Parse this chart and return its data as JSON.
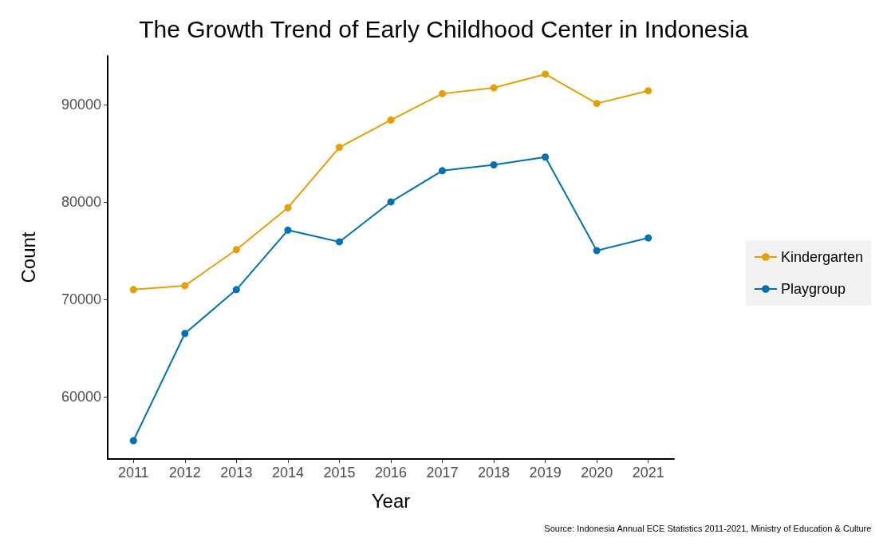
{
  "chart_data": {
    "type": "line",
    "title": "The Growth Trend of Early Childhood Center in Indonesia",
    "xlabel": "Year",
    "ylabel": "Count",
    "categories": [
      "2011",
      "2012",
      "2013",
      "2014",
      "2015",
      "2016",
      "2017",
      "2018",
      "2019",
      "2020",
      "2021"
    ],
    "series": [
      {
        "name": "Kindergarten",
        "color": "#e69f00",
        "values": [
          71000,
          71400,
          75100,
          79400,
          85600,
          88400,
          91100,
          91700,
          93100,
          90100,
          91400
        ]
      },
      {
        "name": "Playgroup",
        "color": "#0072b2",
        "values": [
          55500,
          66500,
          71000,
          77100,
          75900,
          80000,
          83200,
          83800,
          84600,
          75000,
          76300
        ]
      }
    ],
    "ylim": [
      53620,
      94980
    ],
    "yticks": [
      60000,
      70000,
      80000,
      90000
    ],
    "grid": false,
    "legend": "right",
    "marker": "circle",
    "line_style": "solid",
    "annotations": [
      "Source: Indonesia Annual ECE Statistics 2011-2021, Ministry of Education & Culture"
    ]
  }
}
